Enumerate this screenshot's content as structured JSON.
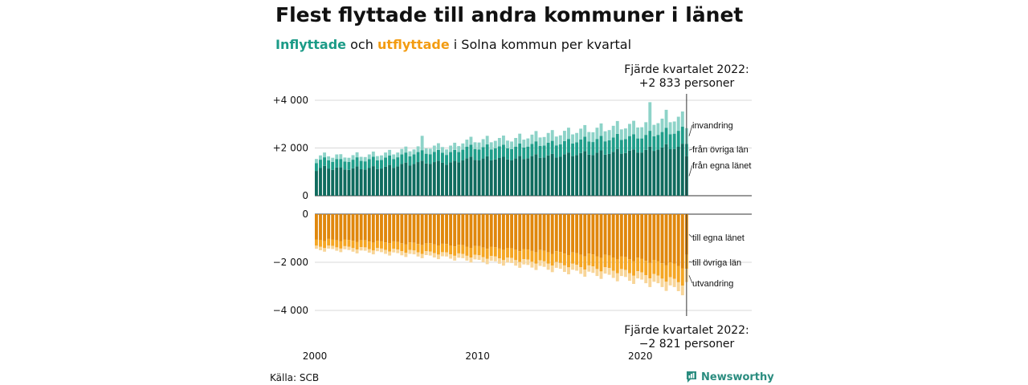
{
  "title": "Flest flyttade till andra kommuner i länet",
  "subtitle": {
    "part1": "Inflyttade",
    "part2": " och ",
    "part3": "utflyttade",
    "part4": " i Solna kommun per kvartal"
  },
  "annotations": {
    "top_line1": "Fjärde kvartalet 2022:",
    "top_line2": "+2 833 personer",
    "bottom_line1": "Fjärde kvartalet 2022:",
    "bottom_line2": "−2 821 personer"
  },
  "source": "Källa: SCB",
  "brand": "Newsworthy",
  "colors": {
    "in_own": "#0f6b5e",
    "in_other": "#1f9e8a",
    "in_immig": "#8dd3c8",
    "out_own": "#e0870c",
    "out_other": "#f5a623",
    "out_emig": "#f8d598"
  },
  "chart_data": {
    "type": "bar",
    "stacked": true,
    "x_start": "2000-Q1",
    "x_end": "2022-Q4",
    "x_ticks": [
      "2000",
      "2010",
      "2020"
    ],
    "top_panel": {
      "y_ticks": [
        "+4 000",
        "+2 000",
        "0"
      ],
      "ylim": [
        0,
        4000
      ],
      "labels": [
        "invandring",
        "från övriga län",
        "från egna länet"
      ]
    },
    "bottom_panel": {
      "y_ticks": [
        "0",
        "−2 000",
        "−4 000"
      ],
      "ylim": [
        -4000,
        0
      ],
      "labels": [
        "till egna länet",
        "till övriga län",
        "utvandring"
      ]
    },
    "series_in": [
      {
        "name": "från egna länet",
        "values": [
          1040,
          1160,
          1250,
          1140,
          1080,
          1180,
          1190,
          1100,
          1080,
          1150,
          1230,
          1110,
          1090,
          1160,
          1240,
          1120,
          1140,
          1220,
          1290,
          1170,
          1230,
          1330,
          1390,
          1260,
          1330,
          1410,
          1470,
          1350,
          1330,
          1410,
          1470,
          1380,
          1300,
          1400,
          1460,
          1400,
          1480,
          1570,
          1640,
          1500,
          1480,
          1560,
          1650,
          1480,
          1520,
          1580,
          1630,
          1520,
          1480,
          1560,
          1670,
          1540,
          1570,
          1660,
          1740,
          1590,
          1600,
          1690,
          1750,
          1600,
          1630,
          1740,
          1810,
          1660,
          1700,
          1790,
          1870,
          1720,
          1700,
          1800,
          1900,
          1720,
          1750,
          1840,
          1960,
          1760,
          1790,
          1890,
          1940,
          1810,
          1810,
          1920,
          2060,
          1880,
          1930,
          2020,
          2160,
          1950,
          1960,
          2050,
          2180,
          1650
        ]
      },
      {
        "name": "från övriga län",
        "values": [
          330,
          350,
          360,
          340,
          340,
          360,
          350,
          330,
          340,
          360,
          380,
          350,
          350,
          370,
          390,
          360,
          360,
          380,
          400,
          370,
          380,
          400,
          420,
          390,
          400,
          420,
          440,
          410,
          410,
          430,
          450,
          420,
          410,
          430,
          460,
          430,
          450,
          480,
          500,
          460,
          460,
          480,
          500,
          460,
          470,
          490,
          510,
          470,
          470,
          490,
          520,
          480,
          490,
          510,
          540,
          500,
          500,
          530,
          550,
          510,
          520,
          550,
          570,
          530,
          540,
          570,
          600,
          550,
          550,
          580,
          610,
          560,
          570,
          600,
          630,
          580,
          580,
          610,
          640,
          590,
          590,
          630,
          660,
          610,
          620,
          650,
          690,
          630,
          640,
          670,
          710,
          520
        ]
      },
      {
        "name": "invandring",
        "values": [
          170,
          180,
          200,
          170,
          170,
          190,
          200,
          170,
          170,
          190,
          210,
          170,
          180,
          200,
          220,
          180,
          190,
          210,
          230,
          190,
          200,
          230,
          250,
          210,
          210,
          240,
          600,
          220,
          230,
          260,
          280,
          240,
          230,
          270,
          300,
          250,
          260,
          300,
          330,
          280,
          290,
          330,
          360,
          300,
          310,
          350,
          380,
          320,
          320,
          370,
          410,
          330,
          340,
          390,
          430,
          350,
          360,
          410,
          450,
          370,
          380,
          430,
          470,
          380,
          390,
          450,
          490,
          400,
          410,
          470,
          520,
          420,
          430,
          490,
          540,
          440,
          450,
          510,
          560,
          460,
          470,
          530,
          1200,
          480,
          490,
          560,
          750,
          500,
          510,
          590,
          640,
          660
        ]
      }
    ],
    "series_out": [
      {
        "name": "till egna länet",
        "values": [
          1050,
          1080,
          1120,
          1030,
          1050,
          1090,
          1130,
          1050,
          1070,
          1110,
          1150,
          1080,
          1090,
          1140,
          1180,
          1100,
          1130,
          1170,
          1210,
          1130,
          1160,
          1210,
          1250,
          1170,
          1190,
          1240,
          1280,
          1200,
          1210,
          1260,
          1300,
          1230,
          1240,
          1300,
          1340,
          1270,
          1290,
          1350,
          1400,
          1320,
          1330,
          1390,
          1440,
          1350,
          1370,
          1430,
          1480,
          1400,
          1420,
          1480,
          1540,
          1450,
          1470,
          1530,
          1590,
          1490,
          1520,
          1590,
          1650,
          1540,
          1570,
          1640,
          1700,
          1590,
          1620,
          1690,
          1760,
          1640,
          1670,
          1750,
          1820,
          1690,
          1720,
          1800,
          1880,
          1750,
          1780,
          1870,
          1950,
          1810,
          1850,
          1940,
          2030,
          1900,
          1950,
          2040,
          2130,
          2000,
          2050,
          2150,
          2250,
          1690
        ]
      },
      {
        "name": "till övriga län",
        "values": [
          260,
          280,
          290,
          270,
          270,
          290,
          300,
          280,
          280,
          300,
          320,
          290,
          290,
          310,
          330,
          300,
          300,
          320,
          340,
          310,
          310,
          330,
          350,
          320,
          320,
          350,
          370,
          340,
          340,
          360,
          380,
          350,
          350,
          370,
          390,
          360,
          360,
          380,
          400,
          370,
          380,
          400,
          420,
          390,
          390,
          410,
          430,
          400,
          400,
          430,
          450,
          420,
          420,
          450,
          470,
          430,
          440,
          470,
          490,
          450,
          460,
          490,
          510,
          470,
          480,
          510,
          540,
          490,
          500,
          530,
          560,
          510,
          520,
          550,
          580,
          530,
          540,
          580,
          610,
          560,
          570,
          600,
          640,
          590,
          600,
          640,
          680,
          620,
          640,
          680,
          720,
          580
        ]
      },
      {
        "name": "utvandring",
        "values": [
          130,
          140,
          150,
          130,
          130,
          140,
          150,
          130,
          140,
          150,
          160,
          140,
          140,
          150,
          160,
          140,
          150,
          160,
          170,
          150,
          150,
          170,
          180,
          160,
          160,
          170,
          180,
          160,
          170,
          180,
          190,
          170,
          170,
          180,
          200,
          180,
          180,
          200,
          210,
          190,
          190,
          210,
          220,
          200,
          200,
          220,
          230,
          210,
          210,
          230,
          240,
          220,
          220,
          240,
          260,
          230,
          230,
          250,
          270,
          240,
          240,
          270,
          290,
          250,
          250,
          280,
          300,
          260,
          270,
          290,
          310,
          270,
          280,
          300,
          330,
          290,
          290,
          320,
          340,
          300,
          300,
          330,
          360,
          320,
          320,
          350,
          380,
          340,
          340,
          370,
          400,
          551
        ]
      }
    ]
  }
}
